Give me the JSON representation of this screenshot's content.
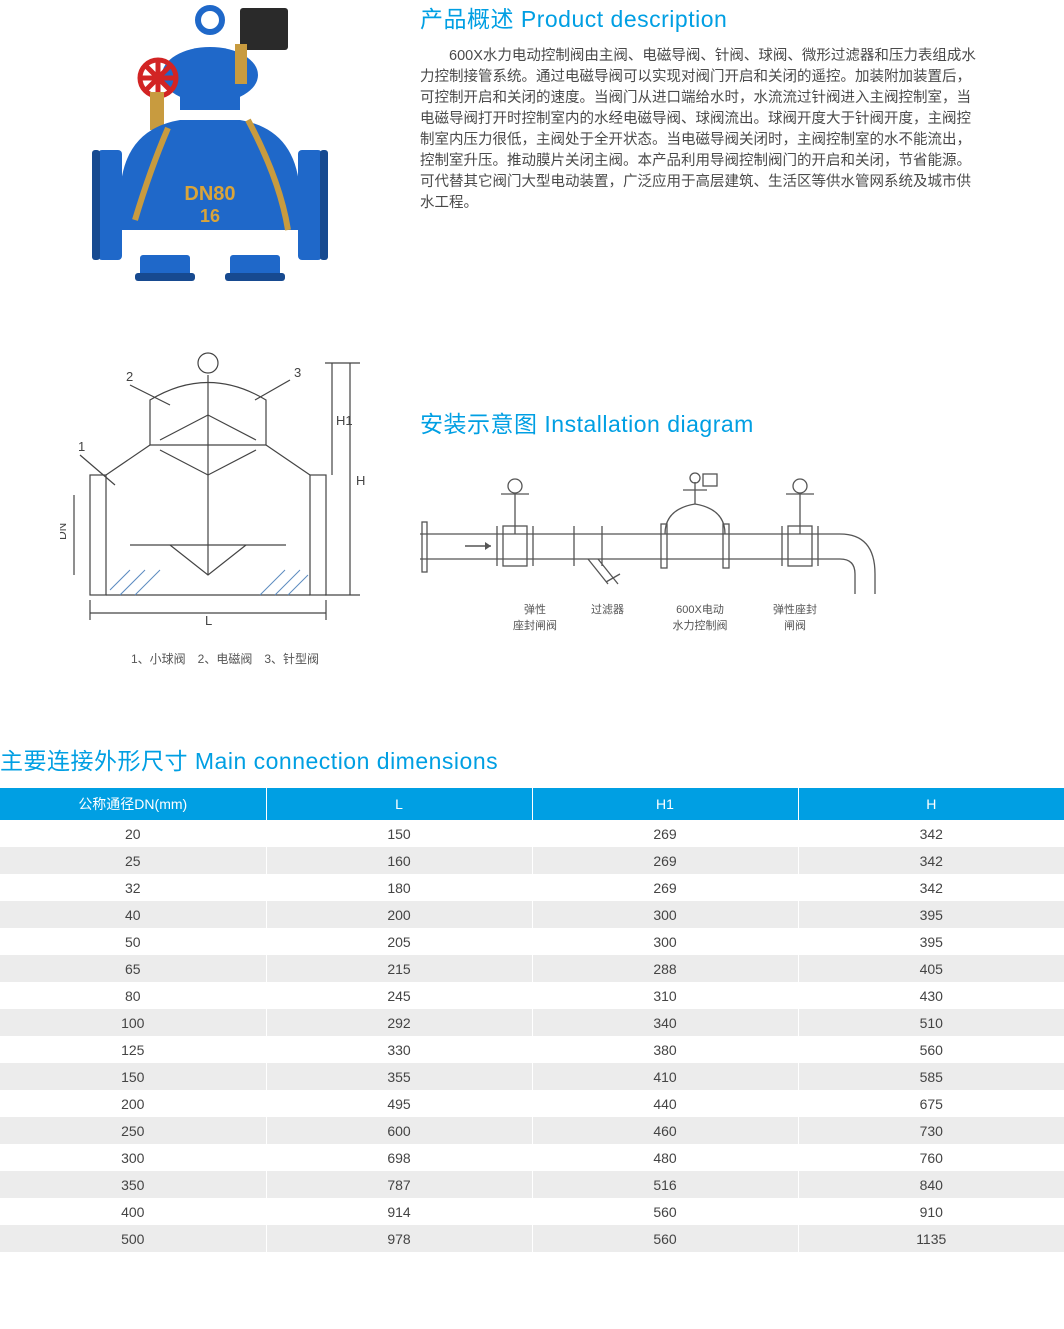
{
  "product_description": {
    "title": "产品概述 Product description",
    "body": "600X水力电动控制阀由主阀、电磁导阀、针阀、球阀、微形过滤器和压力表组成水力控制接管系统。通过电磁导阀可以实现对阀门开启和关闭的遥控。加装附加装置后，可控制开启和关闭的速度。当阀门从进口端给水时，水流流过针阀进入主阀控制室，当电磁导阀打开时控制室内的水经电磁导阀、球阀流出。球阀开度大于针阀开度，主阀控制室内压力很低，主阀处于全开状态。当电磁导阀关闭时，主阀控制室的水不能流出，控制室升压。推动膜片关闭主阀。本产品利用导阀控制阀门的开启和关闭，节省能源。可代替其它阀门大型电动装置，广泛应用于高层建筑、生活区等供水管网系统及城市供水工程。"
  },
  "product_image": {
    "body_color": "#1f68c9",
    "handwheel_color": "#d22424",
    "brass_color": "#c89b3f",
    "box_color": "#2a2a2a",
    "label_text": "DN80",
    "label_sub": "16"
  },
  "schematic": {
    "caption": "1、小球阀　2、电磁阀　3、针型阀",
    "line_color": "#444",
    "hatch_color": "#5b8ac0",
    "labels": [
      "1",
      "2",
      "3"
    ],
    "dim_labels": [
      "L",
      "H",
      "H1",
      "DN"
    ]
  },
  "installation": {
    "title": "安装示意图 Installation diagram",
    "line_color": "#555",
    "labels": [
      {
        "l1": "弹性",
        "l2": "座封闸阀"
      },
      {
        "l1": "过滤器",
        "l2": ""
      },
      {
        "l1": "600X电动",
        "l2": "水力控制阀"
      },
      {
        "l1": "弹性座封",
        "l2": "闸阀"
      }
    ]
  },
  "dimensions": {
    "title": "主要连接外形尺寸 Main connection dimensions",
    "header_bg": "#009fe3",
    "header_fg": "#ffffff",
    "row_alt_bg": "#ececec",
    "columns": [
      "公称通径DN(mm)",
      "L",
      "H1",
      "H"
    ],
    "col_widths": [
      "25%",
      "25%",
      "25%",
      "25%"
    ],
    "rows": [
      [
        "20",
        "150",
        "269",
        "342"
      ],
      [
        "25",
        "160",
        "269",
        "342"
      ],
      [
        "32",
        "180",
        "269",
        "342"
      ],
      [
        "40",
        "200",
        "300",
        "395"
      ],
      [
        "50",
        "205",
        "300",
        "395"
      ],
      [
        "65",
        "215",
        "288",
        "405"
      ],
      [
        "80",
        "245",
        "310",
        "430"
      ],
      [
        "100",
        "292",
        "340",
        "510"
      ],
      [
        "125",
        "330",
        "380",
        "560"
      ],
      [
        "150",
        "355",
        "410",
        "585"
      ],
      [
        "200",
        "495",
        "440",
        "675"
      ],
      [
        "250",
        "600",
        "460",
        "730"
      ],
      [
        "300",
        "698",
        "480",
        "760"
      ],
      [
        "350",
        "787",
        "516",
        "840"
      ],
      [
        "400",
        "914",
        "560",
        "910"
      ],
      [
        "500",
        "978",
        "560",
        "1135"
      ]
    ]
  }
}
